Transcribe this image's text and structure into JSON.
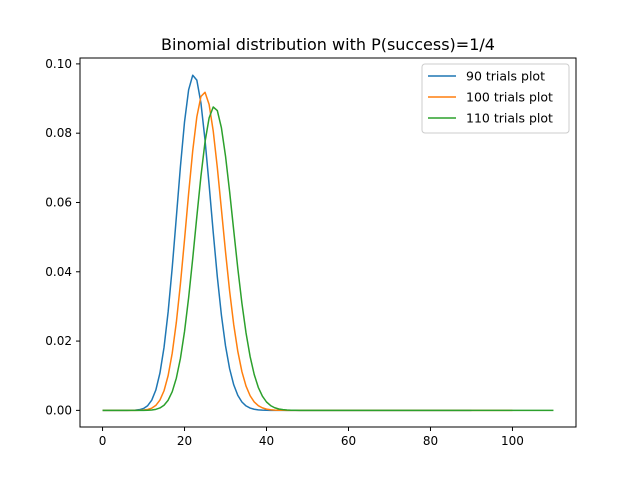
{
  "chart_data": {
    "type": "line",
    "title": "Binomial distribution with P(success)=1/4",
    "xlabel": "",
    "ylabel": "",
    "xlim": [
      -5.5,
      115.5
    ],
    "ylim": [
      -0.0048,
      0.1017
    ],
    "xticks": [
      0,
      20,
      40,
      60,
      80,
      100
    ],
    "yticks": [
      0.0,
      0.02,
      0.04,
      0.06,
      0.08,
      0.1
    ],
    "xtick_labels": [
      "0",
      "20",
      "40",
      "60",
      "80",
      "100"
    ],
    "ytick_labels": [
      "0.00",
      "0.02",
      "0.04",
      "0.06",
      "0.08",
      "0.10"
    ],
    "grid": false,
    "legend": "top-right",
    "p": 0.25,
    "series": [
      {
        "name": "90 trials plot",
        "trials": 90,
        "color": "#1f77b4"
      },
      {
        "name": "100 trials plot",
        "trials": 100,
        "color": "#ff7f0e"
      },
      {
        "name": "110 trials plot",
        "trials": 110,
        "color": "#2ca02c"
      }
    ]
  }
}
